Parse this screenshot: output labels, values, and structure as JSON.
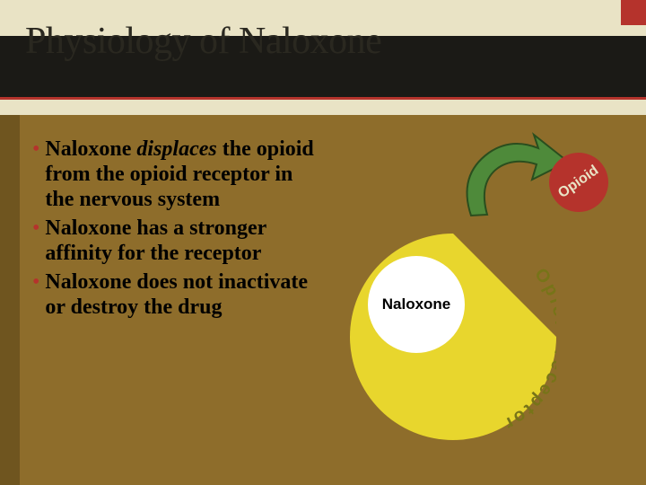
{
  "colors": {
    "cream": "#e9e3c5",
    "dark_bar": "#1b1a16",
    "title_text": "#2a2820",
    "accent_red": "#b5332c",
    "body_bg": "#8e6d2b",
    "left_gutter": "#6f551f",
    "body_text": "#000000",
    "receptor_fill": "#e8d62d",
    "receptor_text": "#777418",
    "naloxone_fill": "#ffffff",
    "naloxone_text": "#000000",
    "opioid_fill": "#b5332c",
    "opioid_text": "#e9e3c5",
    "arrow_fill": "#4e8a3a",
    "arrow_stroke": "#2a4e1e"
  },
  "title": "Physiology of Naloxone",
  "bullets": [
    {
      "html": "Naloxone <em>displaces</em> the opioid from the opioid receptor in the nervous system"
    },
    {
      "html": "Naloxone has a stronger affinity for the receptor"
    },
    {
      "html": "Naloxone does not inactivate or destroy the drug"
    }
  ],
  "diagram": {
    "naloxone_label": "Naloxone",
    "opioid_label": "Opioid",
    "receptor_label": "Opioid receptor"
  }
}
